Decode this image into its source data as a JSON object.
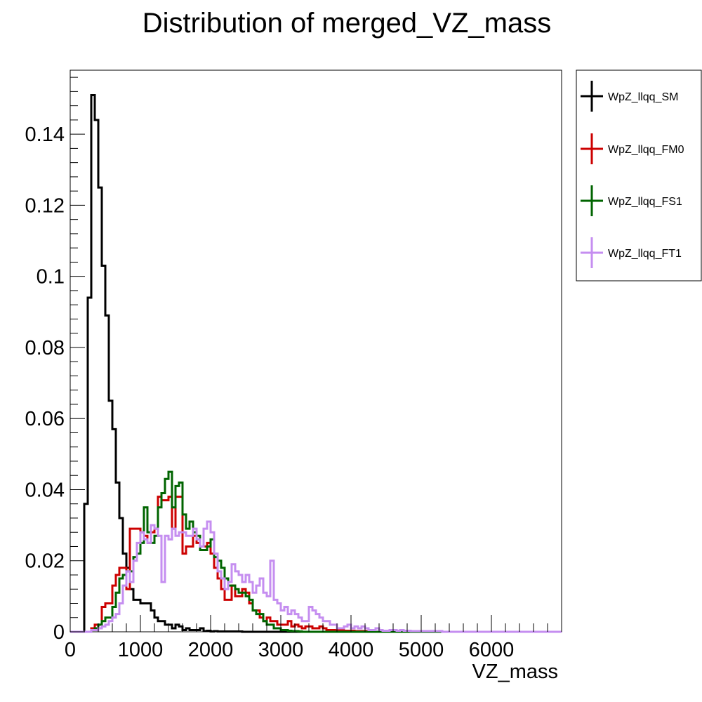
{
  "chart_data": {
    "type": "histogram",
    "title": "Distribution of merged_VZ_mass",
    "xlabel": "VZ_mass",
    "ylabel": "",
    "xlim": [
      0,
      7000
    ],
    "ylim": [
      0,
      0.158
    ],
    "bin_width": 50,
    "x_ticks": [
      {
        "value": 0,
        "label": "0"
      },
      {
        "value": 1000,
        "label": "1000"
      },
      {
        "value": 2000,
        "label": "2000"
      },
      {
        "value": 3000,
        "label": "3000"
      },
      {
        "value": 4000,
        "label": "4000"
      },
      {
        "value": 5000,
        "label": "5000"
      },
      {
        "value": 6000,
        "label": "6000"
      }
    ],
    "y_ticks": [
      {
        "value": 0,
        "label": "0"
      },
      {
        "value": 0.02,
        "label": "0.02"
      },
      {
        "value": 0.04,
        "label": "0.04"
      },
      {
        "value": 0.06,
        "label": "0.06"
      },
      {
        "value": 0.08,
        "label": "0.08"
      },
      {
        "value": 0.1,
        "label": "0.1"
      },
      {
        "value": 0.12,
        "label": "0.12"
      },
      {
        "value": 0.14,
        "label": "0.14"
      }
    ],
    "legend_position": "right",
    "series": [
      {
        "name": "WpZ_llqq_SM",
        "color": "#000000",
        "x0": 200,
        "values": [
          0.036,
          0.094,
          0.151,
          0.144,
          0.125,
          0.103,
          0.089,
          0.065,
          0.057,
          0.042,
          0.032,
          0.022,
          0.018,
          0.012,
          0.009,
          0.009,
          0.008,
          0.008,
          0.008,
          0.006,
          0.004,
          0.003,
          0.003,
          0.002,
          0.002,
          0.001,
          0.002,
          0.0015,
          0.0005,
          0.001,
          0.0005,
          0.0005,
          0.0005,
          0.001,
          0.0002,
          0.0003,
          0.0001,
          0.0002,
          0.0001,
          0.0001,
          0.0001,
          0.0001,
          0.0001,
          0.0001,
          0.0001
        ]
      },
      {
        "name": "WpZ_llqq_FM0",
        "color": "#cc0000",
        "x0": 300,
        "values": [
          0.001,
          0.002,
          0.002,
          0.007,
          0.008,
          0.008,
          0.013,
          0.016,
          0.018,
          0.018,
          0.012,
          0.029,
          0.029,
          0.029,
          0.028,
          0.027,
          0.025,
          0.028,
          0.029,
          0.038,
          0.037,
          0.037,
          0.038,
          0.029,
          0.038,
          0.038,
          0.022,
          0.024,
          0.024,
          0.027,
          0.025,
          0.024,
          0.024,
          0.025,
          0.022,
          0.018,
          0.015,
          0.012,
          0.009,
          0.009,
          0.013,
          0.01,
          0.01,
          0.012,
          0.011,
          0.008,
          0.006,
          0.006,
          0.004,
          0.003,
          0.004,
          0.003,
          0.003,
          0.002,
          0.002,
          0.002,
          0.003,
          0.0015,
          0.002,
          0.0015,
          0.001,
          0.0015,
          0.0015,
          0.001,
          0.001,
          0.0015,
          0.001,
          0.0005,
          0.0005,
          0.0005,
          0.0005,
          0.0005,
          0.0003,
          0.0003,
          0.0003,
          0.0002,
          0.0002,
          0.0002,
          0.0002,
          0.0002
        ]
      },
      {
        "name": "WpZ_llqq_FS1",
        "color": "#006400",
        "x0": 300,
        "values": [
          0.0005,
          0.001,
          0.002,
          0.003,
          0.004,
          0.004,
          0.007,
          0.011,
          0.015,
          0.016,
          0.017,
          0.017,
          0.021,
          0.022,
          0.025,
          0.035,
          0.028,
          0.025,
          0.027,
          0.035,
          0.039,
          0.043,
          0.045,
          0.035,
          0.041,
          0.042,
          0.033,
          0.029,
          0.031,
          0.028,
          0.027,
          0.023,
          0.023,
          0.024,
          0.026,
          0.021,
          0.02,
          0.018,
          0.015,
          0.013,
          0.013,
          0.012,
          0.011,
          0.011,
          0.01,
          0.009,
          0.006,
          0.005,
          0.005,
          0.003,
          0.002,
          0.002,
          0.001,
          0.001,
          0.0005,
          0.0005,
          0.0003,
          0.0002,
          0.0002,
          0.0001
        ]
      },
      {
        "name": "WpZ_llqq_FT1",
        "color": "#c58ef0",
        "x0": 300,
        "values": [
          0.0005,
          0.0005,
          0.001,
          0.0015,
          0.002,
          0.003,
          0.004,
          0.005,
          0.008,
          0.013,
          0.017,
          0.014,
          0.02,
          0.025,
          0.028,
          0.026,
          0.025,
          0.03,
          0.029,
          0.027,
          0.014,
          0.027,
          0.026,
          0.029,
          0.027,
          0.028,
          0.028,
          0.027,
          0.027,
          0.029,
          0.026,
          0.024,
          0.029,
          0.031,
          0.028,
          0.022,
          0.017,
          0.015,
          0.012,
          0.014,
          0.019,
          0.017,
          0.016,
          0.014,
          0.016,
          0.014,
          0.011,
          0.013,
          0.015,
          0.011,
          0.01,
          0.02,
          0.009,
          0.008,
          0.006,
          0.007,
          0.005,
          0.006,
          0.005,
          0.004,
          0.003,
          0.003,
          0.007,
          0.006,
          0.005,
          0.004,
          0.003,
          0.003,
          0.002,
          0.002,
          0.001,
          0.001,
          0.0015,
          0.002,
          0.001,
          0.0015,
          0.001,
          0.0015,
          0.001,
          0.0005,
          0.0005,
          0.001,
          0.0005,
          0.0003,
          0.0003,
          0.0005,
          0.0005,
          0.0003,
          0.0005,
          0.0003,
          0.0003,
          0.0002,
          0.0002,
          0.0002,
          0.0002,
          0.0002,
          0.0002,
          0.0002,
          0.0002,
          0.0002
        ]
      }
    ]
  }
}
